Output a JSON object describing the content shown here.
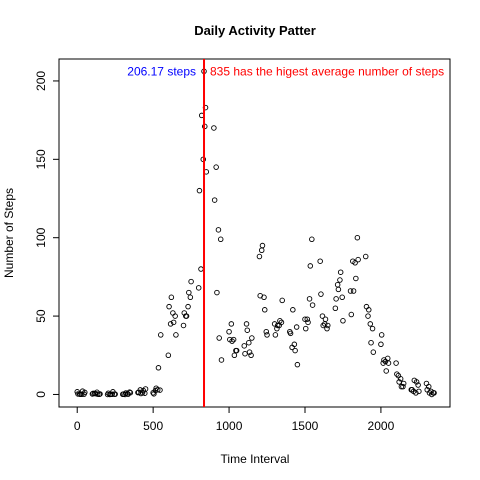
{
  "chart_data": {
    "type": "scatter",
    "title": "Daily Activity Patter",
    "xlabel": "Time Interval",
    "ylabel": "Number of Steps",
    "xlim": [
      -120,
      2455
    ],
    "ylim": [
      -8,
      214
    ],
    "x_ticks": [
      0,
      500,
      1000,
      1500,
      2000
    ],
    "y_ticks": [
      0,
      50,
      100,
      150,
      200
    ],
    "grid": false,
    "marker": "open-circle",
    "point_color": "#000000",
    "vline": {
      "x": 835,
      "color": "#ff0000"
    },
    "annotations": [
      {
        "text": "206.17  steps",
        "x": 835,
        "y": 206,
        "align": "right",
        "color": "#0000ff"
      },
      {
        "text": "835  has the higest average number of steps",
        "x": 835,
        "y": 206,
        "align": "left",
        "color": "#ff0000"
      }
    ],
    "series": [
      {
        "x": [
          0,
          15,
          30,
          45,
          100,
          115,
          130,
          145,
          200,
          215,
          230,
          245,
          300,
          315,
          330,
          345,
          400,
          415,
          430,
          445,
          500,
          515,
          530,
          545,
          600,
          615,
          630,
          645,
          700,
          715,
          730,
          745,
          800,
          815,
          830,
          835,
          845,
          900,
          915,
          930,
          945,
          1000,
          1015,
          1030,
          1045,
          1100,
          1115,
          1130,
          1145,
          1200,
          1215,
          1230,
          1245,
          1300,
          1315,
          1330,
          1345,
          1400,
          1415,
          1430,
          1445,
          1500,
          1515,
          1530,
          1545,
          1600,
          1615,
          1630,
          1645,
          1700,
          1715,
          1730,
          1745,
          1800,
          1815,
          1830,
          1845,
          1900,
          1915,
          1930,
          1945,
          2000,
          2015,
          2030,
          2045,
          2100,
          2115,
          2130,
          2145,
          2200,
          2215,
          2230,
          2245,
          2300,
          2315,
          2330,
          2345
        ],
        "y": [
          1.7,
          0.3,
          0.1,
          0.2,
          0.3,
          0.7,
          1.4,
          0.1,
          0.0,
          0.0,
          0.1,
          0.2,
          0.1,
          0.0,
          0.4,
          1.5,
          1.2,
          2.9,
          1.1,
          0.8,
          1.1,
          2.5,
          3.0,
          2.8,
          25,
          45,
          52,
          50,
          44,
          50,
          56,
          62,
          68,
          80,
          150,
          206.17,
          183,
          170,
          145,
          105,
          99,
          40,
          45,
          35,
          28,
          31,
          45,
          33,
          25,
          88,
          92,
          62,
          40,
          45,
          42,
          44,
          46,
          40,
          30,
          32,
          43,
          48,
          48,
          61,
          99,
          85,
          50,
          45,
          42,
          55,
          70,
          73,
          62,
          66,
          85,
          84,
          100,
          88,
          50,
          45,
          42,
          32,
          20,
          21,
          23,
          20,
          12,
          10,
          5,
          3,
          2,
          1,
          6,
          7,
          5,
          2,
          1
        ]
      },
      {
        "x": [
          5,
          20,
          35,
          50,
          105,
          120,
          135,
          150,
          205,
          220,
          235,
          250,
          305,
          320,
          335,
          350,
          405,
          420,
          435,
          450,
          505,
          520,
          535,
          550,
          605,
          620,
          635,
          650,
          705,
          720,
          735,
          750,
          805,
          820,
          840,
          850,
          905,
          920,
          935,
          950,
          1005,
          1020,
          1035,
          1050,
          1105,
          1120,
          1135,
          1150,
          1205,
          1220,
          1235,
          1250,
          1305,
          1320,
          1335,
          1350,
          1405,
          1420,
          1435,
          1450,
          1505,
          1520,
          1535,
          1550,
          1605,
          1620,
          1635,
          1650,
          1705,
          1720,
          1735,
          1750,
          1805,
          1820,
          1835,
          1850,
          1905,
          1920,
          1935,
          1950,
          2005,
          2020,
          2035,
          2050,
          2105,
          2120,
          2135,
          2150,
          2205,
          2220,
          2235,
          2250,
          2305,
          2320,
          2335,
          2350
        ],
        "y": [
          0.3,
          0.1,
          2.1,
          1.3,
          0.7,
          0.5,
          0.2,
          0.3,
          0.8,
          0.1,
          1.7,
          0.2,
          0.2,
          0.9,
          0.2,
          1.1,
          1.4,
          0.6,
          2.5,
          3.5,
          0.4,
          4.0,
          17,
          38,
          56,
          62,
          46,
          38,
          52,
          50,
          65,
          72,
          130,
          178,
          171,
          142,
          124,
          65,
          36,
          22,
          35,
          34,
          25,
          28,
          26,
          41,
          27,
          36,
          63,
          95,
          54,
          38,
          38,
          44,
          47,
          60,
          39,
          54,
          28,
          19,
          42,
          46,
          82,
          57,
          64,
          44,
          48,
          44,
          61,
          67,
          78,
          47,
          51,
          66,
          74,
          86,
          56,
          54,
          33,
          27,
          38,
          22,
          15,
          20,
          13,
          8,
          5,
          7,
          3,
          9,
          8,
          2,
          3,
          1,
          0,
          1
        ]
      }
    ]
  }
}
